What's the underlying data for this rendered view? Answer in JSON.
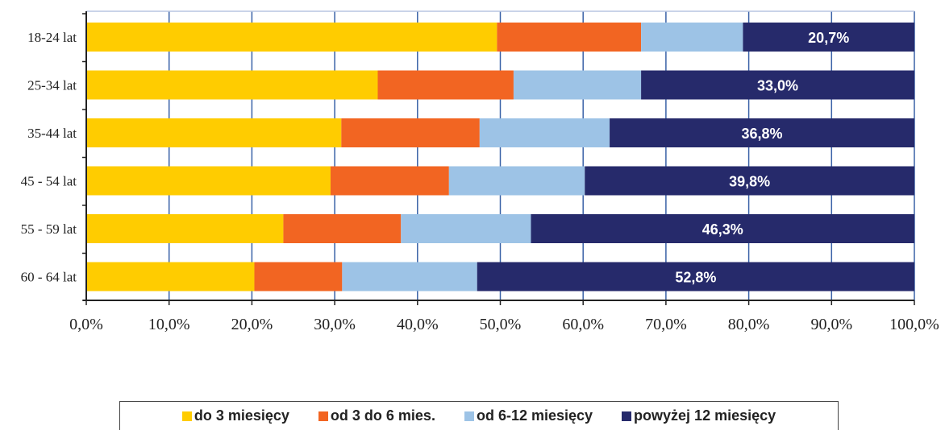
{
  "chart_data": {
    "type": "bar",
    "orientation": "horizontal",
    "stacked": true,
    "categories": [
      "18-24 lat",
      "25-34 lat",
      "35-44 lat",
      "45 - 54 lat",
      "55 - 59 lat",
      "60 - 64 lat"
    ],
    "series": [
      {
        "name": "do 3 miesięcy",
        "color": "#FFCC00",
        "values": [
          49.6,
          35.2,
          30.8,
          29.5,
          23.8,
          20.3
        ]
      },
      {
        "name": "od 3 do 6 mies.",
        "color": "#F26522",
        "values": [
          17.4,
          16.4,
          16.7,
          14.3,
          14.2,
          10.6
        ]
      },
      {
        "name": "od 6-12 miesięcy",
        "color": "#9DC3E6",
        "values": [
          12.3,
          15.4,
          15.7,
          16.4,
          15.7,
          16.3
        ]
      },
      {
        "name": "powyżej 12 miesięcy",
        "color": "#262A6B",
        "values": [
          20.7,
          33.0,
          36.8,
          39.8,
          46.3,
          52.8
        ]
      }
    ],
    "data_labels": [
      "20,7%",
      "33,0%",
      "36,8%",
      "39,8%",
      "46,3%",
      "52,8%"
    ],
    "xlim": [
      0,
      100
    ],
    "x_ticks": [
      0,
      10,
      20,
      30,
      40,
      50,
      60,
      70,
      80,
      90,
      100
    ],
    "x_tick_labels": [
      "0,0%",
      "10,0%",
      "20,0%",
      "30,0%",
      "40,0%",
      "50,0%",
      "60,0%",
      "70,0%",
      "80,0%",
      "90,0%",
      "100,0%"
    ],
    "grid": true,
    "legend_position": "bottom",
    "title": "",
    "xlabel": "",
    "ylabel": ""
  }
}
